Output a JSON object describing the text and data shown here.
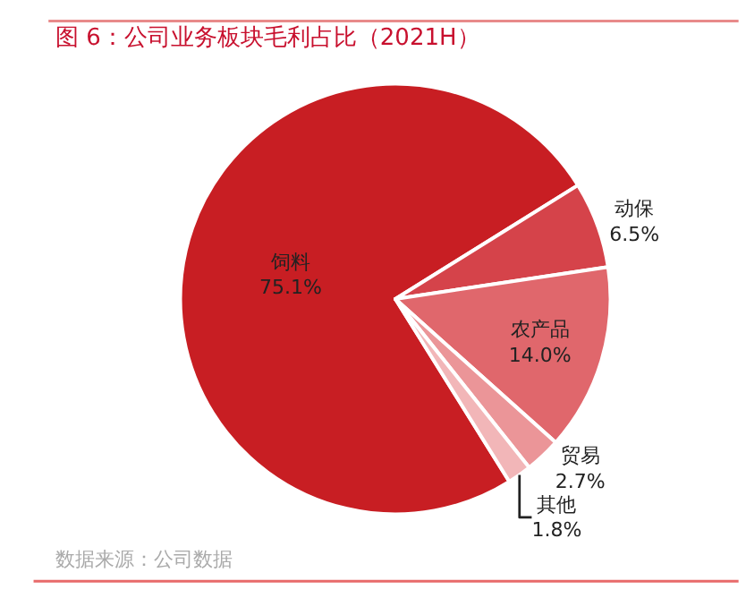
{
  "chart_data": {
    "type": "pie",
    "title": "图 6：公司业务板块毛利占比（2021H）",
    "categories": [
      "饲料",
      "动保",
      "农产品",
      "贸易",
      "其他"
    ],
    "values": [
      75.1,
      6.5,
      14.0,
      2.7,
      1.8
    ],
    "colors": [
      "#c81e23",
      "#d5434a",
      "#e0676c",
      "#eb9598",
      "#f2b6b8"
    ],
    "value_labels": [
      "75.1%",
      "6.5%",
      "14.0%",
      "2.7%",
      "1.8%"
    ],
    "legend": false,
    "annotations": [
      "数据来源：公司数据"
    ]
  }
}
